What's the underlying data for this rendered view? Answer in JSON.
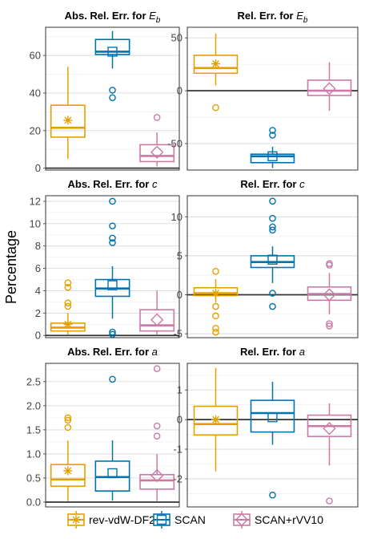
{
  "ylabel": "Percentage",
  "colors": {
    "rev-vdW-DF2": "#E69F00",
    "SCAN": "#0072B2",
    "SCAN+rVV10": "#CC79A7"
  },
  "legend": {
    "position": "bottom",
    "items": [
      {
        "name": "rev-vdW-DF2",
        "marker": "asterisk"
      },
      {
        "name": "SCAN",
        "marker": "square"
      },
      {
        "name": "SCAN+rVV10",
        "marker": "diamond"
      }
    ]
  },
  "chart_data": [
    {
      "type": "box",
      "title": "Abs. Rel. Err. for ",
      "title_var": "E",
      "title_sub": "b",
      "ylim": [
        -1,
        75
      ],
      "yticks": [
        0,
        20,
        40,
        60
      ],
      "ytick_labels": [
        "0",
        "20",
        "40",
        "60"
      ],
      "zero_line": true,
      "grid": true,
      "series": [
        {
          "name": "rev-vdW-DF2",
          "whisker_low": 5,
          "q1": 16.5,
          "median": 21.5,
          "q3": 33.5,
          "whisker_high": 54,
          "mean": 25.5,
          "outliers": []
        },
        {
          "name": "SCAN",
          "whisker_low": 53,
          "q1": 60.5,
          "median": 62,
          "q3": 68.5,
          "whisker_high": 73,
          "mean": 62,
          "outliers": [
            41.5,
            37.5
          ]
        },
        {
          "name": "SCAN+rVV10",
          "whisker_low": 1,
          "q1": 3.5,
          "median": 6.5,
          "q3": 12.5,
          "whisker_high": 19,
          "mean": 8.5,
          "outliers": [
            27
          ]
        }
      ]
    },
    {
      "type": "box",
      "title": "Rel. Err. for ",
      "title_var": "E",
      "title_sub": "b",
      "ylim": [
        -75,
        60
      ],
      "yticks": [
        -50,
        0,
        50
      ],
      "ytick_labels": [
        "-50",
        "0",
        "50"
      ],
      "zero_line": true,
      "grid": true,
      "series": [
        {
          "name": "rev-vdW-DF2",
          "whisker_low": 5,
          "q1": 16.5,
          "median": 21.5,
          "q3": 33.5,
          "whisker_high": 54,
          "mean": 25.5,
          "outliers": [
            -16
          ]
        },
        {
          "name": "SCAN",
          "whisker_low": -73,
          "q1": -68,
          "median": -62,
          "q3": -60,
          "whisker_high": -53,
          "mean": -62,
          "outliers": [
            -37.5,
            -42
          ]
        },
        {
          "name": "SCAN+rVV10",
          "whisker_low": -19,
          "q1": -4.5,
          "median": 0,
          "q3": 10,
          "whisker_high": 27,
          "mean": 2,
          "outliers": []
        }
      ]
    },
    {
      "type": "box",
      "title": "Abs. Rel. Err. for ",
      "title_var": "c",
      "title_sub": "",
      "ylim": [
        -0.2,
        12.5
      ],
      "yticks": [
        0,
        2,
        4,
        6,
        8,
        10,
        12
      ],
      "ytick_labels": [
        "0",
        "2",
        "4",
        "6",
        "8",
        "10",
        "12"
      ],
      "zero_line": true,
      "grid": true,
      "series": [
        {
          "name": "rev-vdW-DF2",
          "whisker_low": 0.1,
          "q1": 0.4,
          "median": 0.7,
          "q3": 1.1,
          "whisker_high": 2.0,
          "mean": 1.0,
          "outliers": [
            4.7,
            4.3,
            2.9,
            2.6
          ]
        },
        {
          "name": "SCAN",
          "whisker_low": 1.5,
          "q1": 3.5,
          "median": 4.2,
          "q3": 5.0,
          "whisker_high": 6.2,
          "mean": 4.5,
          "outliers": [
            12.0,
            9.8,
            8.7,
            8.3,
            0.3,
            0.1
          ]
        },
        {
          "name": "SCAN+rVV10",
          "whisker_low": 0.1,
          "q1": 0.4,
          "median": 0.9,
          "q3": 2.3,
          "whisker_high": 4.0,
          "mean": 1.4,
          "outliers": []
        }
      ]
    },
    {
      "type": "box",
      "title": "Rel. Err. for ",
      "title_var": "c",
      "title_sub": "",
      "ylim": [
        -5.5,
        12.7
      ],
      "yticks": [
        -5,
        0,
        5,
        10
      ],
      "ytick_labels": [
        "-5",
        "0",
        "5",
        "10"
      ],
      "zero_line": true,
      "grid": true,
      "series": [
        {
          "name": "rev-vdW-DF2",
          "whisker_low": -1.0,
          "q1": -0.1,
          "median": 0.2,
          "q3": 0.9,
          "whisker_high": 2.0,
          "mean": 0.2,
          "outliers": [
            3.0,
            -1.5,
            -2.7,
            -4.3,
            -4.8
          ]
        },
        {
          "name": "SCAN",
          "whisker_low": 1.5,
          "q1": 3.5,
          "median": 4.2,
          "q3": 5.0,
          "whisker_high": 6.2,
          "mean": 4.5,
          "outliers": [
            12.0,
            9.8,
            8.7,
            8.3,
            0.2,
            -1.5
          ]
        },
        {
          "name": "SCAN+rVV10",
          "whisker_low": -2.5,
          "q1": -0.7,
          "median": 0.1,
          "q3": 1.0,
          "whisker_high": 2.8,
          "mean": 0.0,
          "outliers": [
            4.0,
            3.8,
            -3.7,
            -4.0
          ]
        }
      ]
    },
    {
      "type": "box",
      "title": "Abs. Rel. Err. for ",
      "title_var": "a",
      "title_sub": "",
      "ylim": [
        -0.1,
        2.88
      ],
      "yticks": [
        0,
        0.5,
        1,
        1.5,
        2,
        2.5
      ],
      "ytick_labels": [
        "0.0",
        "0.5",
        "1.0",
        "1.5",
        "2.0",
        "2.5"
      ],
      "zero_line": true,
      "grid": true,
      "series": [
        {
          "name": "rev-vdW-DF2",
          "whisker_low": 0.02,
          "q1": 0.33,
          "median": 0.47,
          "q3": 0.78,
          "whisker_high": 1.28,
          "mean": 0.65,
          "outliers": [
            1.75,
            1.7,
            1.55
          ]
        },
        {
          "name": "SCAN",
          "whisker_low": 0.03,
          "q1": 0.23,
          "median": 0.52,
          "q3": 0.85,
          "whisker_high": 1.28,
          "mean": 0.6,
          "outliers": [
            2.55
          ]
        },
        {
          "name": "SCAN+rVV10",
          "whisker_low": 0.02,
          "q1": 0.27,
          "median": 0.45,
          "q3": 0.57,
          "whisker_high": 1.0,
          "mean": 0.55,
          "outliers": [
            2.77,
            1.58,
            1.37
          ]
        }
      ]
    },
    {
      "type": "box",
      "title": "Rel. Err. for ",
      "title_var": "a",
      "title_sub": "",
      "ylim": [
        -2.95,
        1.9
      ],
      "yticks": [
        -2,
        -1,
        0,
        1
      ],
      "ytick_labels": [
        "-2",
        "-1",
        "0",
        "1"
      ],
      "zero_line": true,
      "grid": true,
      "series": [
        {
          "name": "rev-vdW-DF2",
          "whisker_low": -1.75,
          "q1": -0.52,
          "median": -0.15,
          "q3": 0.45,
          "whisker_high": 1.75,
          "mean": 0.0,
          "outliers": []
        },
        {
          "name": "SCAN",
          "whisker_low": -0.85,
          "q1": -0.42,
          "median": 0.22,
          "q3": 0.65,
          "whisker_high": 1.28,
          "mean": 0.08,
          "outliers": [
            -2.55
          ]
        },
        {
          "name": "SCAN+rVV10",
          "whisker_low": -1.55,
          "q1": -0.57,
          "median": -0.22,
          "q3": 0.15,
          "whisker_high": 0.55,
          "mean": -0.3,
          "outliers": [
            -2.75
          ]
        }
      ]
    }
  ]
}
